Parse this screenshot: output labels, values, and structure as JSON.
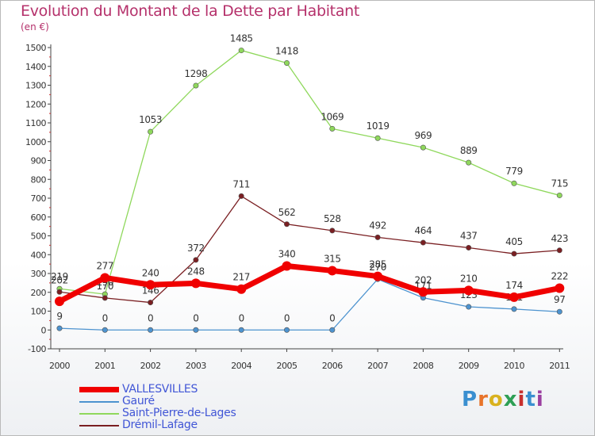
{
  "header": {
    "title": "Evolution du Montant de la Dette par Habitant",
    "subtitle": "(en €)"
  },
  "logo": {
    "text": "Proxiti",
    "colors": [
      "#3a8fd0",
      "#e8742b",
      "#d9b21f",
      "#2e9f55",
      "#c8302e",
      "#3a8fd0",
      "#9b3fa0"
    ]
  },
  "chart_data": {
    "type": "line",
    "title": "Evolution du Montant de la Dette par Habitant",
    "subtitle": "(en €)",
    "xlabel": "",
    "ylabel": "",
    "ylim": [
      -100,
      1500
    ],
    "ytick_step": 100,
    "grid": false,
    "legend_position": "bottom-left",
    "categories": [
      "2000",
      "2001",
      "2002",
      "2003",
      "2004",
      "2005",
      "2006",
      "2007",
      "2008",
      "2009",
      "2010",
      "2011"
    ],
    "series": [
      {
        "name": "Saint-Pierre-de-Lages",
        "color": "#8fd85c",
        "values": [
          219,
          190,
          1053,
          1298,
          1485,
          1418,
          1069,
          1019,
          969,
          889,
          779,
          715
        ],
        "labels": [
          "219",
          "190",
          "1053",
          "1298",
          "1485",
          "1418",
          "1069",
          "1019",
          "969",
          "889",
          "779",
          "715"
        ]
      },
      {
        "name": "Drémil-Lafage",
        "color": "#7a1f22",
        "values": [
          202,
          170,
          146,
          372,
          711,
          562,
          528,
          492,
          464,
          437,
          405,
          423
        ],
        "labels": [
          "202",
          "170",
          "146",
          "372",
          "711",
          "562",
          "528",
          "492",
          "464",
          "437",
          "405",
          "423"
        ]
      },
      {
        "name": "Gauré",
        "color": "#4d93cf",
        "values": [
          9,
          0,
          0,
          0,
          0,
          0,
          0,
          270,
          171,
          123,
          111,
          97
        ],
        "labels": [
          "9",
          "0",
          "0",
          "0",
          "0",
          "0",
          "0",
          "270",
          "171",
          "123",
          "111",
          "97"
        ]
      },
      {
        "name": "VALLESVILLES",
        "color": "#f00000",
        "values": [
          152,
          277,
          240,
          248,
          217,
          340,
          315,
          285,
          202,
          210,
          174,
          222
        ],
        "labels": [
          "",
          "277",
          "240",
          "248",
          "217",
          "340",
          "315",
          "285",
          "202",
          "210",
          "174",
          "222"
        ]
      }
    ]
  }
}
